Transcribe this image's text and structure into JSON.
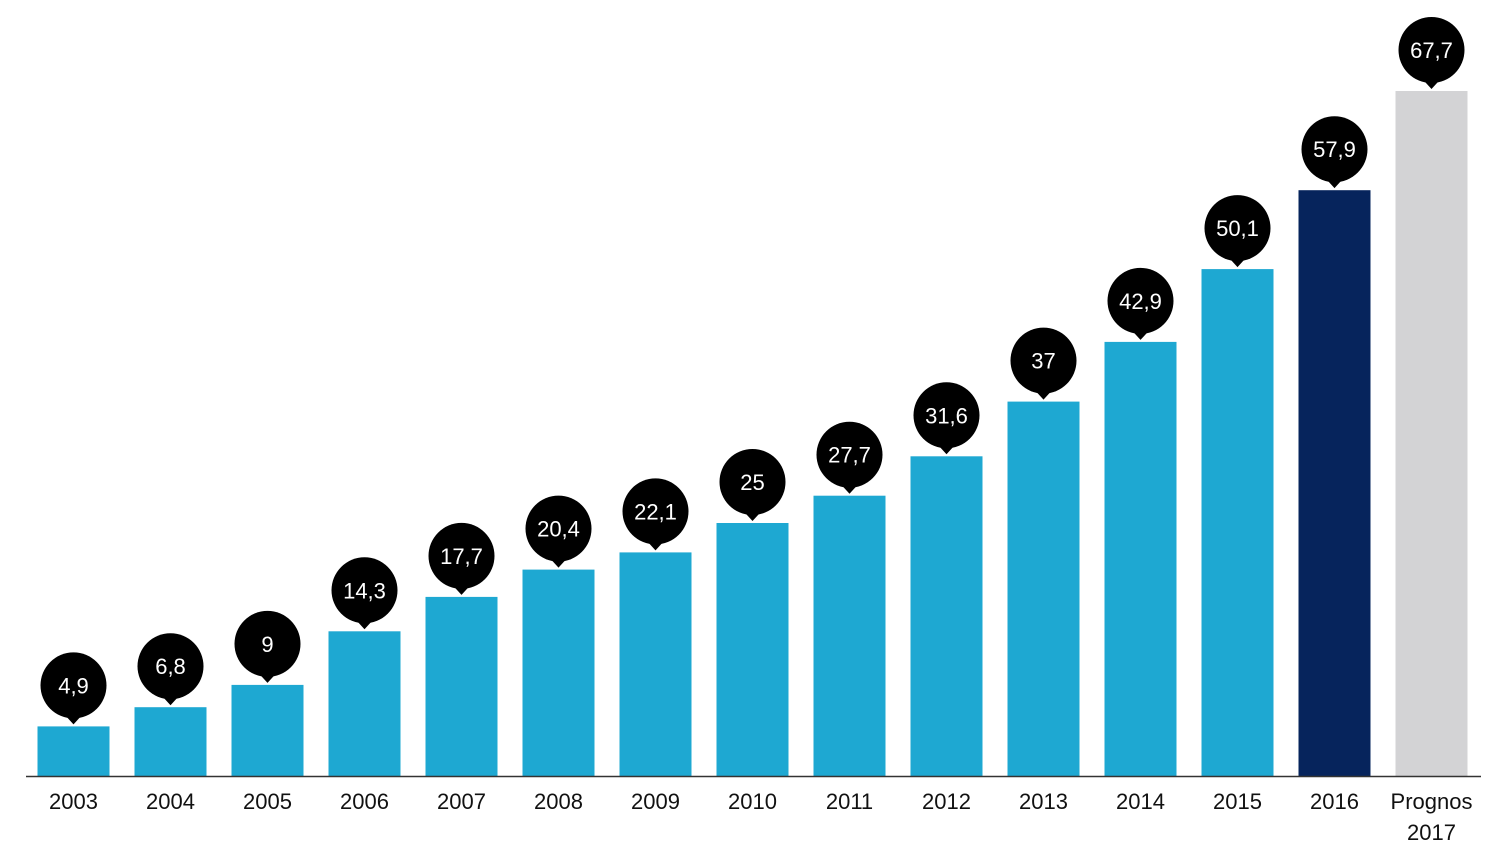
{
  "chart_data": {
    "type": "bar",
    "title": "",
    "xlabel": "",
    "ylabel": "",
    "ylim": [
      0,
      67.7
    ],
    "grid": false,
    "legend": "none",
    "categories": [
      [
        "2003"
      ],
      [
        "2004"
      ],
      [
        "2005"
      ],
      [
        "2006"
      ],
      [
        "2007"
      ],
      [
        "2008"
      ],
      [
        "2009"
      ],
      [
        "2010"
      ],
      [
        "2011"
      ],
      [
        "2012"
      ],
      [
        "2013"
      ],
      [
        "2014"
      ],
      [
        "2015"
      ],
      [
        "2016"
      ],
      [
        "Prognos",
        "2017"
      ]
    ],
    "values": [
      4.9,
      6.8,
      9,
      14.3,
      17.7,
      20.4,
      22.1,
      25,
      27.7,
      31.6,
      37,
      42.9,
      50.1,
      57.9,
      67.7
    ],
    "value_labels": [
      "4,9",
      "6,8",
      "9",
      "14,3",
      "17,7",
      "20,4",
      "22,1",
      "25",
      "27,7",
      "31,6",
      "37",
      "42,9",
      "50,1",
      "57,9",
      "67,7"
    ],
    "bar_colors": [
      "#1ea8d2",
      "#1ea8d2",
      "#1ea8d2",
      "#1ea8d2",
      "#1ea8d2",
      "#1ea8d2",
      "#1ea8d2",
      "#1ea8d2",
      "#1ea8d2",
      "#1ea8d2",
      "#1ea8d2",
      "#1ea8d2",
      "#1ea8d2",
      "#06245c",
      "#d3d3d5"
    ],
    "label_bubble_color": "#000000",
    "label_text_color": "#ffffff",
    "baseline_color": "#333333"
  }
}
